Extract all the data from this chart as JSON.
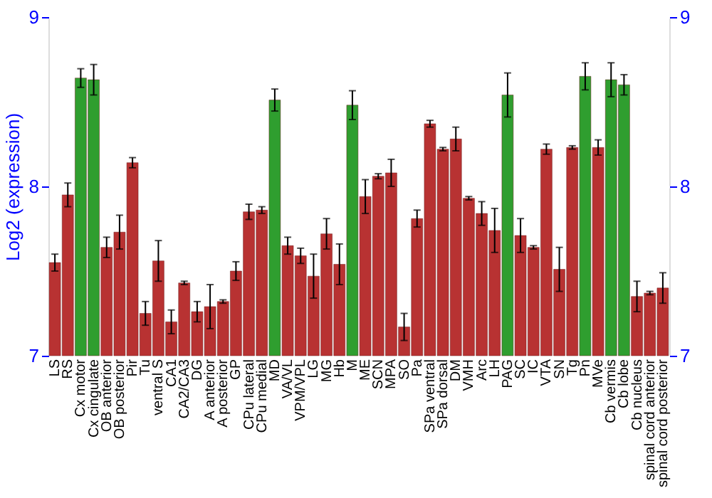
{
  "chart_data": {
    "type": "bar",
    "ylabel": "Log2 (expression)",
    "categories": [
      "LS",
      "RS",
      "Cx motor",
      "Cx cingulate",
      "OB anterior",
      "OB posterior",
      "Pir",
      "Tu",
      "ventral S",
      "CA1",
      "CA2/CA3",
      "DG",
      "A anterior",
      "A posterior",
      "GP",
      "CPu lateral",
      "CPu medial",
      "MD",
      "VA/VL",
      "VPM/VPL",
      "LG",
      "MG",
      "Hb",
      "M",
      "ME",
      "SCN",
      "MPA",
      "SO",
      "Pa",
      "SPa ventral",
      "SPa dorsal",
      "DM",
      "VMH",
      "Arc",
      "LH",
      "PAG",
      "SC",
      "IC",
      "VTA",
      "SN",
      "Tg",
      "Pn",
      "MVe",
      "Cb vermis",
      "Cb lobe",
      "Cb nucleus",
      "spinal cord anterior",
      "spinal cord posterior"
    ],
    "values": [
      7.55,
      7.95,
      8.64,
      8.63,
      7.64,
      7.73,
      8.14,
      7.25,
      7.56,
      7.2,
      7.43,
      7.26,
      7.29,
      7.32,
      7.5,
      7.85,
      7.86,
      8.51,
      7.65,
      7.59,
      7.47,
      7.72,
      7.54,
      8.48,
      7.94,
      8.06,
      8.08,
      7.17,
      7.81,
      8.37,
      8.22,
      8.28,
      7.93,
      7.84,
      7.74,
      8.54,
      7.71,
      7.64,
      8.22,
      7.51,
      8.23,
      8.65,
      8.23,
      8.63,
      8.6,
      7.35,
      7.37,
      7.4
    ],
    "errors": [
      0.05,
      0.07,
      0.055,
      0.09,
      0.06,
      0.1,
      0.03,
      0.07,
      0.12,
      0.07,
      0.01,
      0.06,
      0.13,
      0.01,
      0.055,
      0.045,
      0.02,
      0.065,
      0.05,
      0.045,
      0.13,
      0.09,
      0.12,
      0.085,
      0.1,
      0.015,
      0.08,
      0.08,
      0.05,
      0.02,
      0.01,
      0.07,
      0.01,
      0.07,
      0.13,
      0.13,
      0.1,
      0.01,
      0.03,
      0.13,
      0.01,
      0.08,
      0.045,
      0.1,
      0.06,
      0.09,
      0.01,
      0.09
    ],
    "colors": [
      "#b83232",
      "#b83232",
      "#2f9e2f",
      "#2f9e2f",
      "#b83232",
      "#b83232",
      "#b83232",
      "#b83232",
      "#b83232",
      "#b83232",
      "#b83232",
      "#b83232",
      "#b83232",
      "#b83232",
      "#b83232",
      "#b83232",
      "#b83232",
      "#2f9e2f",
      "#b83232",
      "#b83232",
      "#b83232",
      "#b83232",
      "#b83232",
      "#2f9e2f",
      "#b83232",
      "#b83232",
      "#b83232",
      "#b83232",
      "#b83232",
      "#b83232",
      "#b83232",
      "#b83232",
      "#b83232",
      "#b83232",
      "#b83232",
      "#2f9e2f",
      "#b83232",
      "#b83232",
      "#b83232",
      "#b83232",
      "#b83232",
      "#2f9e2f",
      "#b83232",
      "#2f9e2f",
      "#2f9e2f",
      "#b83232",
      "#b83232",
      "#b83232"
    ],
    "ylim": [
      7,
      9
    ],
    "yticks": [
      7,
      8,
      9
    ],
    "y2lim": [
      7,
      9
    ],
    "y2ticks": [
      7,
      8,
      9
    ],
    "grid": "y"
  }
}
